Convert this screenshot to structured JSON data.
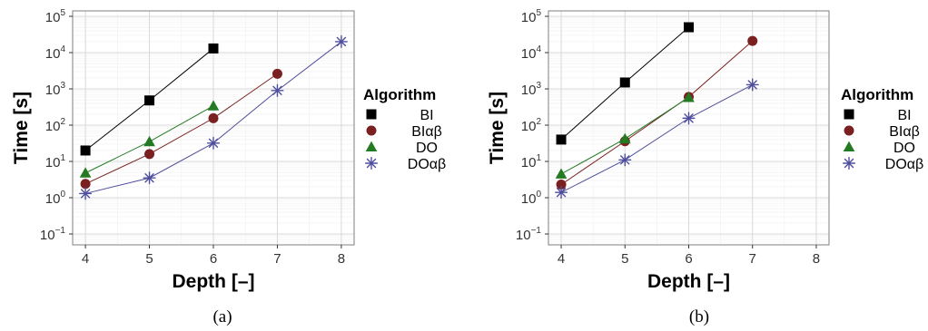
{
  "chart_data": [
    {
      "type": "line",
      "caption": "(a)",
      "xlabel": "Depth [–]",
      "ylabel": "Time [s]",
      "log_y": true,
      "xlim": [
        3.8,
        8.2
      ],
      "ylim_exp": [
        -1.3,
        5.15
      ],
      "x_ticks": [
        4,
        5,
        6,
        7,
        8
      ],
      "y_ticks_exp": [
        -1,
        0,
        1,
        2,
        3,
        4,
        5
      ],
      "grid": true,
      "legend": {
        "title": "Algorithm",
        "placement": "right",
        "entries": [
          "BI",
          "BIαβ",
          "DO",
          "DOαβ"
        ]
      },
      "series": [
        {
          "name": "BI",
          "marker": "square",
          "color": "#000000",
          "x": [
            4,
            5,
            6
          ],
          "y": [
            20,
            480,
            13000
          ]
        },
        {
          "name": "BIαβ",
          "marker": "circle",
          "color": "#7b2020",
          "x": [
            4,
            5,
            6,
            7
          ],
          "y": [
            2.4,
            16,
            155,
            2600
          ]
        },
        {
          "name": "DO",
          "marker": "triangle",
          "color": "#237a23",
          "x": [
            4,
            5,
            6
          ],
          "y": [
            4.8,
            35,
            340
          ]
        },
        {
          "name": "DOαβ",
          "marker": "asterisk",
          "color": "#4e4e9c",
          "x": [
            4,
            5,
            6,
            7,
            8
          ],
          "y": [
            1.3,
            3.5,
            32,
            900,
            20000
          ]
        }
      ]
    },
    {
      "type": "line",
      "caption": "(b)",
      "xlabel": "Depth [–]",
      "ylabel": "Time [s]",
      "log_y": true,
      "xlim": [
        3.8,
        8.2
      ],
      "ylim_exp": [
        -1.3,
        5.15
      ],
      "x_ticks": [
        4,
        5,
        6,
        7,
        8
      ],
      "y_ticks_exp": [
        -1,
        0,
        1,
        2,
        3,
        4,
        5
      ],
      "grid": true,
      "legend": {
        "title": "Algorithm",
        "placement": "right",
        "entries": [
          "BI",
          "BIαβ",
          "DO",
          "DOαβ"
        ]
      },
      "series": [
        {
          "name": "BI",
          "marker": "square",
          "color": "#000000",
          "x": [
            4,
            5,
            6
          ],
          "y": [
            40,
            1500,
            50000
          ]
        },
        {
          "name": "BIαβ",
          "marker": "circle",
          "color": "#7b2020",
          "x": [
            4,
            5,
            6,
            7
          ],
          "y": [
            2.3,
            36,
            600,
            21000
          ]
        },
        {
          "name": "DO",
          "marker": "triangle",
          "color": "#237a23",
          "x": [
            4,
            5,
            6
          ],
          "y": [
            4.5,
            42,
            580
          ]
        },
        {
          "name": "DOαβ",
          "marker": "asterisk",
          "color": "#4e4e9c",
          "x": [
            4,
            5,
            6,
            7
          ],
          "y": [
            1.4,
            11,
            155,
            1300
          ]
        }
      ]
    }
  ]
}
